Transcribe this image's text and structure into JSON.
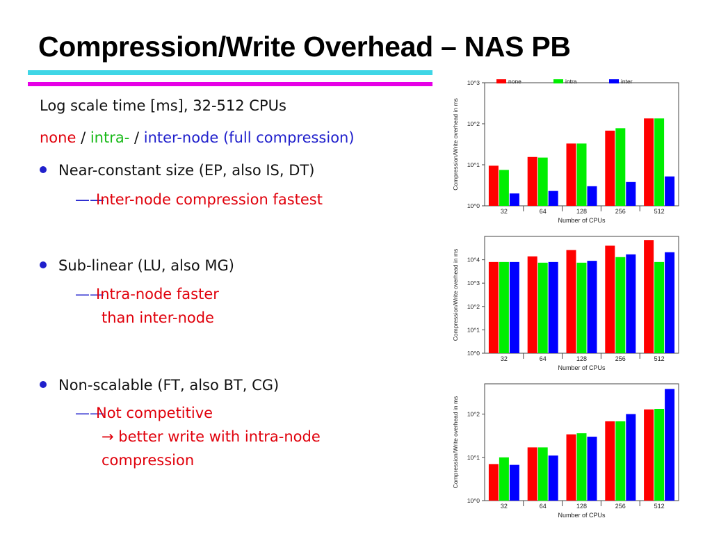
{
  "slide": {
    "title": "Compression/Write Overhead – NAS PB",
    "subtitle": "Log scale time [ms], 32-512 CPUs",
    "legend_line": {
      "none": "none",
      "sep1": " / ",
      "intra": "intra-",
      "sep2": " / ",
      "inter": "inter-node (full compression)"
    },
    "bullets": [
      {
        "text": "Near-constant size (EP, also IS, DT)",
        "sub": [
          "Inter-node compression fastest"
        ]
      },
      {
        "text": "Sub-linear (LU, also MG)",
        "sub": [
          "Intra-node faster",
          "than inter-node"
        ]
      },
      {
        "text": "Non-scalable (FT, also BT, CG)",
        "sub": [
          "Not competitive",
          "→ better write with intra-node",
          "compression"
        ]
      }
    ],
    "dash": "——",
    "colors": {
      "none": "#ff0000",
      "intra": "#00ee00",
      "inter": "#0000ff",
      "bullet": "#2020cc",
      "rule_top": "#3fd6e6",
      "rule_bottom": "#e600e6"
    }
  },
  "chart_data": [
    {
      "type": "bar",
      "scale": "log",
      "categories": [
        "32",
        "64",
        "128",
        "256",
        "512"
      ],
      "series": [
        {
          "name": "none",
          "values": [
            9.5,
            15.5,
            33,
            68,
            135
          ]
        },
        {
          "name": "intra",
          "values": [
            7.5,
            15,
            33,
            78,
            135
          ]
        },
        {
          "name": "inter",
          "values": [
            2,
            2.3,
            3,
            3.8,
            5.2
          ]
        }
      ],
      "xlabel": "Number of CPUs",
      "ylabel": "Compression/Write overhead in ms",
      "ylim": [
        1,
        1000
      ],
      "yticks": [
        1,
        10,
        100,
        1000
      ],
      "ytick_labels": [
        "10^0",
        "10^1",
        "10^2",
        "10^3"
      ],
      "legend": "top"
    },
    {
      "type": "bar",
      "scale": "log",
      "categories": [
        "32",
        "64",
        "128",
        "256",
        "512"
      ],
      "series": [
        {
          "values": [
            8000,
            14000,
            26000,
            40000,
            70000
          ]
        },
        {
          "values": [
            8000,
            7500,
            7500,
            13000,
            8000
          ]
        },
        {
          "values": [
            8000,
            8000,
            9000,
            17000,
            21000
          ]
        }
      ],
      "xlabel": "Number of CPUs",
      "ylabel": "Compression/Write overhead in ms",
      "ylim": [
        1,
        100000
      ],
      "yticks": [
        1,
        10,
        100,
        1000,
        10000
      ],
      "ytick_labels": [
        "10^0",
        "10^1",
        "10^2",
        "10^3",
        "10^4"
      ]
    },
    {
      "type": "bar",
      "scale": "log",
      "categories": [
        "32",
        "64",
        "128",
        "256",
        "512"
      ],
      "series": [
        {
          "values": [
            7,
            17,
            34,
            68,
            128
          ]
        },
        {
          "values": [
            10,
            17,
            36,
            68,
            132
          ]
        },
        {
          "values": [
            6.7,
            11,
            30,
            100,
            380
          ]
        }
      ],
      "xlabel": "Number of CPUs",
      "ylabel": "Compression/Write overhead in ms",
      "ylim": [
        1,
        500
      ],
      "yticks": [
        1,
        10,
        100
      ],
      "ytick_labels": [
        "10^0",
        "10^1",
        "10^2"
      ]
    }
  ]
}
